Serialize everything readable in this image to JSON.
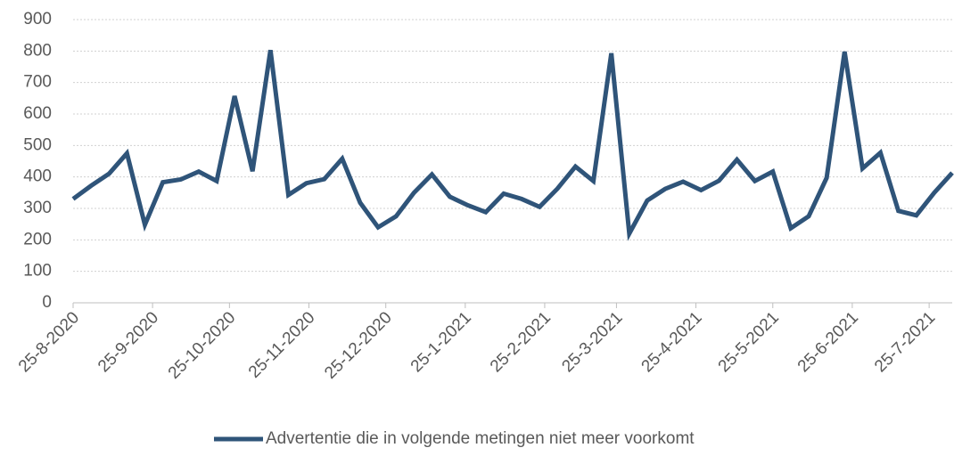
{
  "chart_data": {
    "type": "line",
    "x": [
      "2020-08-25",
      "2020-09-01",
      "2020-09-08",
      "2020-09-15",
      "2020-09-22",
      "2020-09-29",
      "2020-10-06",
      "2020-10-13",
      "2020-10-20",
      "2020-10-27",
      "2020-11-03",
      "2020-11-10",
      "2020-11-17",
      "2020-11-24",
      "2020-12-01",
      "2020-12-08",
      "2020-12-15",
      "2020-12-22",
      "2020-12-29",
      "2021-01-05",
      "2021-01-12",
      "2021-01-19",
      "2021-01-26",
      "2021-02-02",
      "2021-02-09",
      "2021-02-16",
      "2021-02-23",
      "2021-03-02",
      "2021-03-09",
      "2021-03-16",
      "2021-03-23",
      "2021-03-30",
      "2021-04-06",
      "2021-04-13",
      "2021-04-20",
      "2021-04-27",
      "2021-05-04",
      "2021-05-11",
      "2021-05-18",
      "2021-05-25",
      "2021-06-01",
      "2021-06-08",
      "2021-06-15",
      "2021-06-22",
      "2021-06-29",
      "2021-07-06",
      "2021-07-13",
      "2021-07-20",
      "2021-07-27",
      "2021-08-03"
    ],
    "series": [
      {
        "name": "Advertentie die in volgende metingen niet meer voorkomt",
        "color": "#2f5479",
        "values": [
          330,
          372,
          410,
          475,
          248,
          383,
          392,
          417,
          387,
          657,
          418,
          803,
          343,
          380,
          393,
          458,
          318,
          240,
          275,
          350,
          408,
          337,
          310,
          288,
          347,
          330,
          305,
          363,
          433,
          387,
          793,
          220,
          325,
          362,
          385,
          358,
          388,
          455,
          387,
          417,
          237,
          275,
          397,
          798,
          427,
          477,
          292,
          278,
          350,
          413
        ]
      }
    ],
    "xlim": [
      "2020-08-25",
      "2021-08-03"
    ],
    "xticks": [
      {
        "value": "2020-08-25",
        "label": "25-8-2020"
      },
      {
        "value": "2020-09-25",
        "label": "25-9-2020"
      },
      {
        "value": "2020-10-25",
        "label": "25-10-2020"
      },
      {
        "value": "2020-11-25",
        "label": "25-11-2020"
      },
      {
        "value": "2020-12-25",
        "label": "25-12-2020"
      },
      {
        "value": "2021-01-25",
        "label": "25-1-2021"
      },
      {
        "value": "2021-02-25",
        "label": "25-2-2021"
      },
      {
        "value": "2021-03-25",
        "label": "25-3-2021"
      },
      {
        "value": "2021-04-25",
        "label": "25-4-2021"
      },
      {
        "value": "2021-05-25",
        "label": "25-5-2021"
      },
      {
        "value": "2021-06-25",
        "label": "25-6-2021"
      },
      {
        "value": "2021-07-25",
        "label": "25-7-2021"
      }
    ],
    "ylim": [
      0,
      900
    ],
    "yticks": [
      0,
      100,
      200,
      300,
      400,
      500,
      600,
      700,
      800,
      900
    ],
    "grid": true,
    "legend": "bottom"
  }
}
